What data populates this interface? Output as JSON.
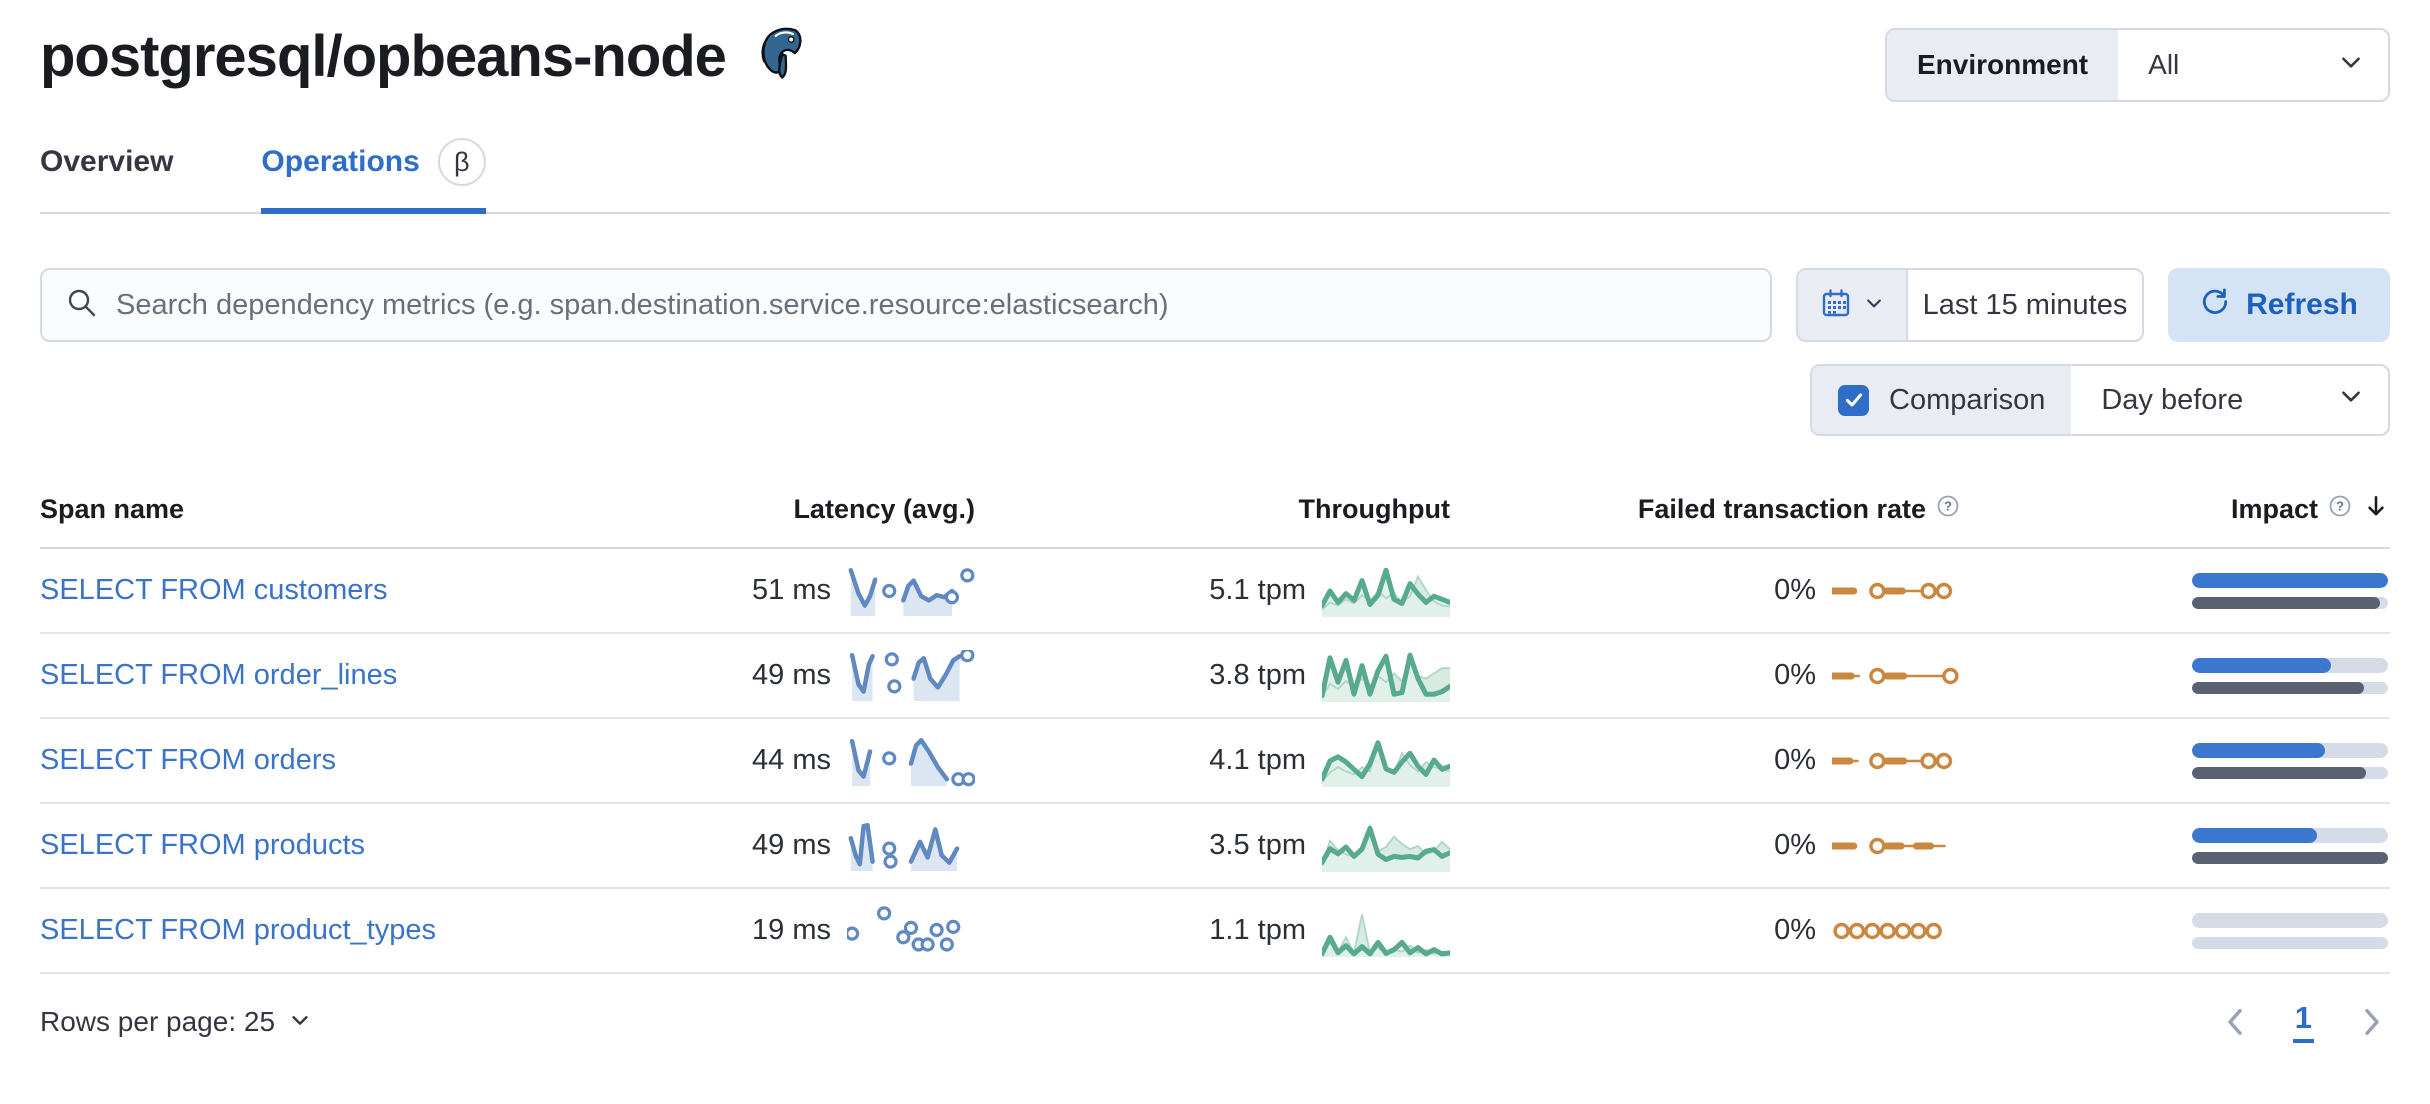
{
  "header": {
    "title": "postgresql/opbeans-node",
    "logo_icon": "postgresql-elephant-icon",
    "environment_label": "Environment",
    "environment_value": "All"
  },
  "tabs": [
    {
      "label": "Overview",
      "active": false
    },
    {
      "label": "Operations",
      "active": true,
      "badge": "β"
    }
  ],
  "controls": {
    "search_placeholder": "Search dependency metrics (e.g. span.destination.service.resource:elasticsearch)",
    "search_icon": "search-icon",
    "calendar_icon": "calendar-icon",
    "time_range": "Last 15 minutes",
    "refresh_label": "Refresh",
    "refresh_icon": "refresh-icon",
    "comparison_label": "Comparison",
    "comparison_checked": true,
    "comparison_value": "Day before"
  },
  "colors": {
    "accent": "#2f6dc9",
    "link": "#3b73c9",
    "latency_line": "#6089c2",
    "latency_fill": "#dce6f2",
    "tp_cur_line": "#57a98f",
    "tp_cur_fill": "#e2f0ea",
    "tp_prev_line": "#aed6c6",
    "tp_prev_fill": "#d7ebe1",
    "failed_line": "#c9873f",
    "impact_bar": "#3b76cf",
    "impact_prev": "#5a6170",
    "impact_track": "#d5dce8"
  },
  "table": {
    "columns": [
      "Span name",
      "Latency (avg.)",
      "Throughput",
      "Failed transaction rate",
      "Impact"
    ],
    "sorted_column": "Impact",
    "sort_direction": "down",
    "rows": [
      {
        "span_name": "SELECT FROM customers",
        "latency": "51 ms",
        "throughput": "5.1 tpm",
        "failed_rate": "0%",
        "impact_pct": 100,
        "impact_prev_pct": 96,
        "latency_spark": {
          "segments": [
            [
              [
                0.03,
                0.1
              ],
              [
                0.09,
                0.55
              ],
              [
                0.14,
                0.78
              ],
              [
                0.18,
                0.6
              ],
              [
                0.22,
                0.28
              ]
            ],
            [
              [
                0.44,
                0.68
              ],
              [
                0.48,
                0.4
              ],
              [
                0.52,
                0.3
              ],
              [
                0.58,
                0.6
              ],
              [
                0.64,
                0.68
              ],
              [
                0.7,
                0.58
              ],
              [
                0.76,
                0.62
              ],
              [
                0.82,
                0.5
              ]
            ]
          ],
          "areas": [
            0,
            1
          ],
          "dots": [
            [
              0.33,
              0.5
            ],
            [
              0.82,
              0.62
            ],
            [
              0.94,
              0.2
            ]
          ]
        },
        "throughput_spark": {
          "current": [
            0.78,
            0.5,
            0.72,
            0.55,
            0.68,
            0.3,
            0.76,
            0.58,
            0.1,
            0.66,
            0.74,
            0.36,
            0.56,
            0.72,
            0.6,
            0.66,
            0.72
          ],
          "previous": [
            0.86,
            0.72,
            0.78,
            0.66,
            0.74,
            0.58,
            0.7,
            0.5,
            0.64,
            0.54,
            0.72,
            0.6,
            0.22,
            0.48,
            0.7,
            0.78,
            0.8
          ]
        },
        "failed_spark": [
          {
            "t": "dash",
            "a": 0.0,
            "b": 0.17
          },
          {
            "t": "dot",
            "a": 0.3
          },
          {
            "t": "dash",
            "a": 0.43,
            "b": 0.55
          },
          {
            "t": "line",
            "a": 0.55,
            "b": 0.88
          },
          {
            "t": "dot",
            "a": 0.7
          },
          {
            "t": "dot",
            "a": 0.82
          }
        ]
      },
      {
        "span_name": "SELECT FROM order_lines",
        "latency": "49 ms",
        "throughput": "3.8 tpm",
        "failed_rate": "0%",
        "impact_pct": 71,
        "impact_prev_pct": 88,
        "latency_spark": {
          "segments": [
            [
              [
                0.04,
                0.1
              ],
              [
                0.09,
                0.66
              ],
              [
                0.13,
                0.8
              ],
              [
                0.17,
                0.28
              ],
              [
                0.2,
                0.12
              ]
            ],
            [
              [
                0.52,
                0.55
              ],
              [
                0.56,
                0.24
              ],
              [
                0.6,
                0.16
              ],
              [
                0.65,
                0.55
              ],
              [
                0.71,
                0.72
              ],
              [
                0.77,
                0.48
              ],
              [
                0.83,
                0.2
              ],
              [
                0.88,
                0.12
              ]
            ]
          ],
          "areas": [
            0,
            1
          ],
          "dots": [
            [
              0.35,
              0.18
            ],
            [
              0.37,
              0.7
            ],
            [
              0.94,
              0.1
            ]
          ]
        },
        "throughput_spark": {
          "current": [
            0.88,
            0.15,
            0.62,
            0.2,
            0.85,
            0.3,
            0.85,
            0.4,
            0.12,
            0.85,
            0.82,
            0.1,
            0.55,
            0.85,
            0.85,
            0.8,
            0.7
          ],
          "previous": [
            0.9,
            0.65,
            0.75,
            0.6,
            0.7,
            0.55,
            0.68,
            0.5,
            0.62,
            0.45,
            0.6,
            0.2,
            0.5,
            0.55,
            0.45,
            0.35,
            0.35
          ]
        },
        "failed_spark": [
          {
            "t": "dash",
            "a": 0.0,
            "b": 0.15
          },
          {
            "t": "line",
            "a": 0.15,
            "b": 0.21
          },
          {
            "t": "dot",
            "a": 0.3
          },
          {
            "t": "dash",
            "a": 0.43,
            "b": 0.56
          },
          {
            "t": "line",
            "a": 0.56,
            "b": 0.86
          },
          {
            "t": "dot",
            "a": 0.87
          }
        ]
      },
      {
        "span_name": "SELECT FROM orders",
        "latency": "44 ms",
        "throughput": "4.1 tpm",
        "failed_rate": "0%",
        "impact_pct": 68,
        "impact_prev_pct": 89,
        "latency_spark": {
          "segments": [
            [
              [
                0.04,
                0.12
              ],
              [
                0.09,
                0.68
              ],
              [
                0.13,
                0.8
              ],
              [
                0.18,
                0.32
              ]
            ],
            [
              [
                0.5,
                0.55
              ],
              [
                0.54,
                0.2
              ],
              [
                0.58,
                0.1
              ],
              [
                0.64,
                0.32
              ],
              [
                0.71,
                0.62
              ],
              [
                0.78,
                0.85
              ]
            ]
          ],
          "areas": [
            0,
            1
          ],
          "dots": [
            [
              0.33,
              0.45
            ],
            [
              0.87,
              0.85
            ],
            [
              0.95,
              0.85
            ]
          ]
        },
        "throughput_spark": {
          "current": [
            0.85,
            0.5,
            0.42,
            0.52,
            0.66,
            0.8,
            0.55,
            0.15,
            0.65,
            0.72,
            0.52,
            0.35,
            0.6,
            0.76,
            0.48,
            0.66,
            0.6
          ],
          "previous": [
            0.9,
            0.72,
            0.62,
            0.7,
            0.76,
            0.62,
            0.7,
            0.15,
            0.68,
            0.74,
            0.35,
            0.58,
            0.7,
            0.52,
            0.62,
            0.66,
            0.7
          ]
        },
        "failed_spark": [
          {
            "t": "dash",
            "a": 0.0,
            "b": 0.14
          },
          {
            "t": "line",
            "a": 0.14,
            "b": 0.2
          },
          {
            "t": "dot",
            "a": 0.3
          },
          {
            "t": "dash",
            "a": 0.43,
            "b": 0.56
          },
          {
            "t": "line",
            "a": 0.56,
            "b": 0.85
          },
          {
            "t": "dot",
            "a": 0.7
          },
          {
            "t": "dot",
            "a": 0.82
          }
        ]
      },
      {
        "span_name": "SELECT FROM products",
        "latency": "49 ms",
        "throughput": "3.5 tpm",
        "failed_rate": "0%",
        "impact_pct": 64,
        "impact_prev_pct": 100,
        "latency_spark": {
          "segments": [
            [
              [
                0.03,
                0.35
              ],
              [
                0.07,
                0.7
              ],
              [
                0.1,
                0.85
              ],
              [
                0.13,
                0.12
              ],
              [
                0.16,
                0.1
              ],
              [
                0.2,
                0.8
              ]
            ],
            [
              [
                0.5,
                0.8
              ],
              [
                0.57,
                0.42
              ],
              [
                0.63,
                0.72
              ],
              [
                0.69,
                0.18
              ],
              [
                0.74,
                0.68
              ],
              [
                0.8,
                0.82
              ],
              [
                0.86,
                0.55
              ]
            ]
          ],
          "areas": [
            0,
            1
          ],
          "dots": [
            [
              0.33,
              0.55
            ],
            [
              0.34,
              0.8
            ]
          ]
        },
        "throughput_spark": {
          "current": [
            0.82,
            0.55,
            0.65,
            0.52,
            0.7,
            0.56,
            0.16,
            0.66,
            0.76,
            0.7,
            0.72,
            0.7,
            0.73,
            0.6,
            0.57,
            0.7,
            0.63
          ],
          "previous": [
            0.88,
            0.4,
            0.58,
            0.66,
            0.72,
            0.6,
            0.12,
            0.6,
            0.52,
            0.32,
            0.46,
            0.56,
            0.5,
            0.66,
            0.6,
            0.42,
            0.56
          ]
        },
        "failed_spark": [
          {
            "t": "dash",
            "a": 0.0,
            "b": 0.17
          },
          {
            "t": "dot",
            "a": 0.3
          },
          {
            "t": "dash",
            "a": 0.43,
            "b": 0.54
          },
          {
            "t": "line",
            "a": 0.54,
            "b": 0.66
          },
          {
            "t": "dash",
            "a": 0.66,
            "b": 0.77
          },
          {
            "t": "line",
            "a": 0.77,
            "b": 0.88
          }
        ]
      },
      {
        "span_name": "SELECT FROM product_types",
        "latency": "19 ms",
        "throughput": "1.1 tpm",
        "failed_rate": "0%",
        "impact_pct": 0,
        "impact_prev_pct": 0,
        "latency_spark": {
          "segments": [],
          "areas": [],
          "dots": [
            [
              0.04,
              0.55
            ],
            [
              0.29,
              0.16
            ],
            [
              0.44,
              0.62
            ],
            [
              0.5,
              0.44
            ],
            [
              0.56,
              0.76
            ],
            [
              0.63,
              0.76
            ],
            [
              0.7,
              0.48
            ],
            [
              0.78,
              0.76
            ],
            [
              0.83,
              0.42
            ]
          ]
        },
        "throughput_spark": {
          "current": [
            0.94,
            0.62,
            0.92,
            0.78,
            0.94,
            0.8,
            0.94,
            0.72,
            0.93,
            0.86,
            0.72,
            0.92,
            0.82,
            0.94,
            0.86,
            0.94,
            0.92
          ],
          "previous": [
            0.94,
            0.74,
            0.9,
            0.62,
            0.92,
            0.18,
            0.92,
            0.82,
            0.94,
            0.86,
            0.9,
            0.78,
            0.92,
            0.86,
            0.94,
            0.9,
            0.94
          ]
        },
        "failed_spark": [
          {
            "t": "dot",
            "a": 0.02
          },
          {
            "t": "dot",
            "a": 0.14
          },
          {
            "t": "dot",
            "a": 0.26
          },
          {
            "t": "dot",
            "a": 0.38
          },
          {
            "t": "dot",
            "a": 0.5
          },
          {
            "t": "dot",
            "a": 0.62
          },
          {
            "t": "dot",
            "a": 0.74
          }
        ]
      }
    ]
  },
  "pagination": {
    "rows_per_page_label": "Rows per page: 25",
    "current_page": "1"
  }
}
